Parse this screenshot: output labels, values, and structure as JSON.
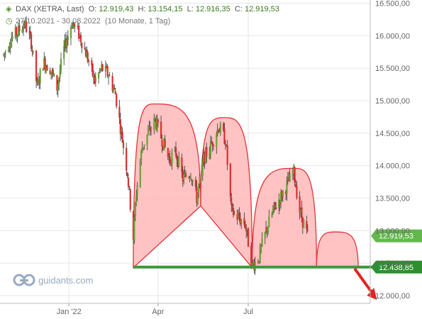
{
  "header": {
    "title": "DAX (XETRA, Last)",
    "open_label": "O:",
    "open": "12.919,43",
    "high_label": "H:",
    "high": "13.154,15",
    "low_label": "L:",
    "low": "12.916,35",
    "close_label": "C:",
    "close": "12.919,53",
    "range": "27.10.2021 - 30.08.2022",
    "period": "(10 Monate, 1 Tag)"
  },
  "watermark": "guidants.com",
  "colors": {
    "up": "#6aa232",
    "down": "#d8312f",
    "pattern_fill": "#ffb9b9",
    "pattern_stroke": "#e0343a",
    "neckline": "#3b9a3b",
    "arrow": "#e52222",
    "last_price_badge": "#62b84c",
    "neckline_badge": "#2f8f2f"
  },
  "chart_data": {
    "type": "candlestick",
    "title": "DAX (XETRA, Last)",
    "x_tick_labels": [
      "Jan '22",
      "Apr",
      "Jul"
    ],
    "y_tick_labels": [
      "12.000,00",
      "12.500,00",
      "13.000,00",
      "13.500,00",
      "14.000,00",
      "14.500,00",
      "15.000,00",
      "15.500,00",
      "16.000,00",
      "16.500,00"
    ],
    "y_ticks": [
      12000,
      12500,
      13000,
      13500,
      14000,
      14500,
      15000,
      15500,
      16000,
      16500
    ],
    "ylim": [
      11880,
      16550
    ],
    "date_range": [
      "2021-10-27",
      "2022-08-30"
    ],
    "grid": true,
    "price_path": [
      [
        "2021-10-27",
        15700
      ],
      [
        "2021-11-03",
        15950
      ],
      [
        "2021-11-10",
        16050
      ],
      [
        "2021-11-17",
        16200
      ],
      [
        "2021-11-24",
        15900
      ],
      [
        "2021-11-30",
        15200
      ],
      [
        "2021-12-06",
        15600
      ],
      [
        "2021-12-13",
        15500
      ],
      [
        "2021-12-20",
        15200
      ],
      [
        "2021-12-27",
        15800
      ],
      [
        "2022-01-04",
        16200
      ],
      [
        "2022-01-12",
        16000
      ],
      [
        "2022-01-20",
        15650
      ],
      [
        "2022-01-27",
        15300
      ],
      [
        "2022-02-03",
        15500
      ],
      [
        "2022-02-10",
        15400
      ],
      [
        "2022-02-17",
        15100
      ],
      [
        "2022-02-24",
        14400
      ],
      [
        "2022-03-01",
        13900
      ],
      [
        "2022-03-07",
        12900
      ],
      [
        "2022-03-10",
        13600
      ],
      [
        "2022-03-16",
        14300
      ],
      [
        "2022-03-22",
        14500
      ],
      [
        "2022-03-29",
        14700
      ],
      [
        "2022-04-05",
        14400
      ],
      [
        "2022-04-12",
        14100
      ],
      [
        "2022-04-19",
        14200
      ],
      [
        "2022-04-26",
        13800
      ],
      [
        "2022-05-04",
        13900
      ],
      [
        "2022-05-10",
        13500
      ],
      [
        "2022-05-17",
        14100
      ],
      [
        "2022-05-24",
        14300
      ],
      [
        "2022-06-01",
        14600
      ],
      [
        "2022-06-08",
        14400
      ],
      [
        "2022-06-14",
        13300
      ],
      [
        "2022-06-21",
        13200
      ],
      [
        "2022-06-28",
        13100
      ],
      [
        "2022-07-05",
        12450
      ],
      [
        "2022-07-12",
        12600
      ],
      [
        "2022-07-19",
        13000
      ],
      [
        "2022-07-26",
        13300
      ],
      [
        "2022-08-02",
        13500
      ],
      [
        "2022-08-09",
        13700
      ],
      [
        "2022-08-16",
        13900
      ],
      [
        "2022-08-22",
        13300
      ],
      [
        "2022-08-30",
        12920
      ]
    ],
    "pattern": {
      "left_shoulder": [
        [
          "2022-03-07",
          12430
        ],
        [
          "2022-03-28",
          14950
        ],
        [
          "2022-05-14",
          13380
        ]
      ],
      "head": [
        [
          "2022-05-14",
          13380
        ],
        [
          "2022-06-07",
          14740
        ],
        [
          "2022-07-05",
          12430
        ]
      ],
      "right_shoulder": [
        [
          "2022-07-05",
          12430
        ],
        [
          "2022-08-16",
          13960
        ],
        [
          "2022-09-08",
          12430
        ]
      ],
      "projected_hump": [
        [
          "2022-09-08",
          12430
        ],
        [
          "2022-09-27",
          12980
        ],
        [
          "2022-10-20",
          12430
        ]
      ],
      "neckline": [
        [
          "2022-03-07",
          12438.85
        ],
        [
          "2022-10-25",
          12438.85
        ]
      ],
      "projection_arrow": [
        [
          "2022-10-25",
          12438.85
        ],
        [
          "2022-11-05",
          12000
        ]
      ]
    },
    "price_labels": [
      {
        "text": "12.919,53",
        "value": 12919.53
      },
      {
        "text": "12.438,85",
        "value": 12438.85
      }
    ]
  }
}
